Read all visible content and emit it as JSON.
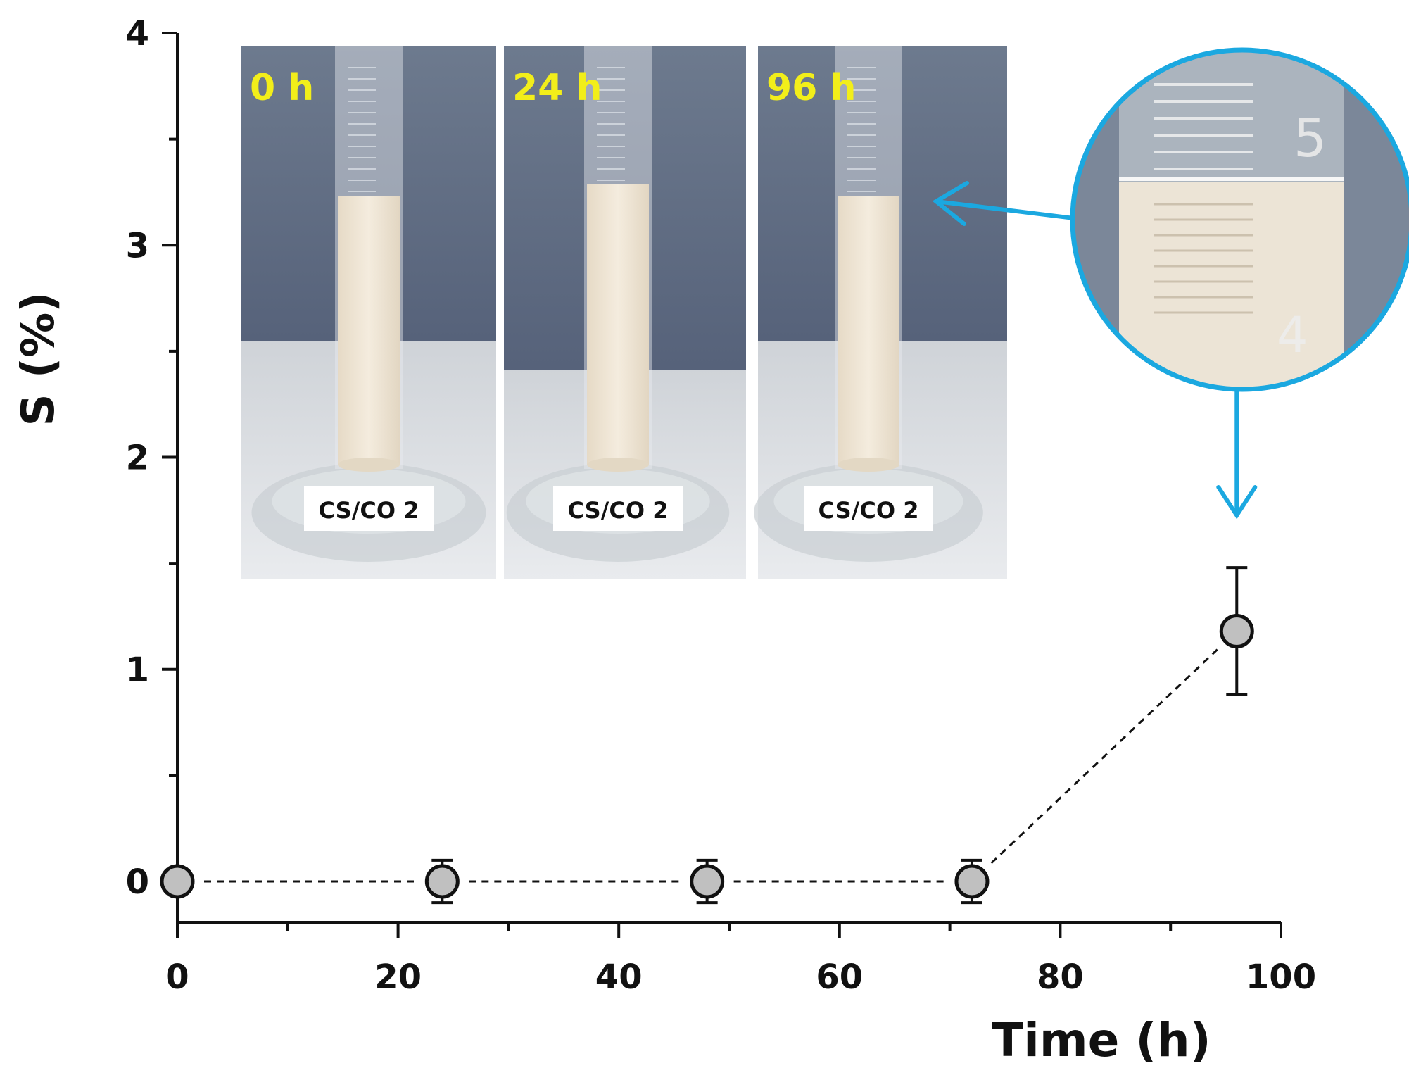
{
  "chart_data": {
    "type": "scatter",
    "title": "",
    "xlabel": "Time (h)",
    "ylabel": "S (%)",
    "xlim": [
      0,
      100
    ],
    "ylim": [
      -0.2,
      4
    ],
    "x_ticks": [
      "0",
      "20",
      "40",
      "60",
      "80",
      "100"
    ],
    "y_ticks": [
      "0",
      "1",
      "2",
      "3",
      "4"
    ],
    "grid": false,
    "legend": "none",
    "line_style": "dashed",
    "series": [
      {
        "x": [
          0,
          24,
          48,
          72,
          96
        ],
        "y": [
          0,
          0,
          0,
          0,
          1.18
        ],
        "error": [
          0,
          0.1,
          0.1,
          0.1,
          0.3
        ]
      }
    ]
  },
  "inset": {
    "photos": [
      {
        "time_label": "0 h",
        "sample_label": "CS/CO 2"
      },
      {
        "time_label": "24 h",
        "sample_label": "CS/CO 2"
      },
      {
        "time_label": "96 h",
        "sample_label": "CS/CO 2"
      }
    ],
    "zoom_digits": [
      "5",
      "4"
    ]
  },
  "colors": {
    "marker_fill": "#c0c0c0",
    "marker_edge": "#111111",
    "accent_arrow": "#1ba8e0",
    "label_yellow": "#f2ee1a"
  }
}
